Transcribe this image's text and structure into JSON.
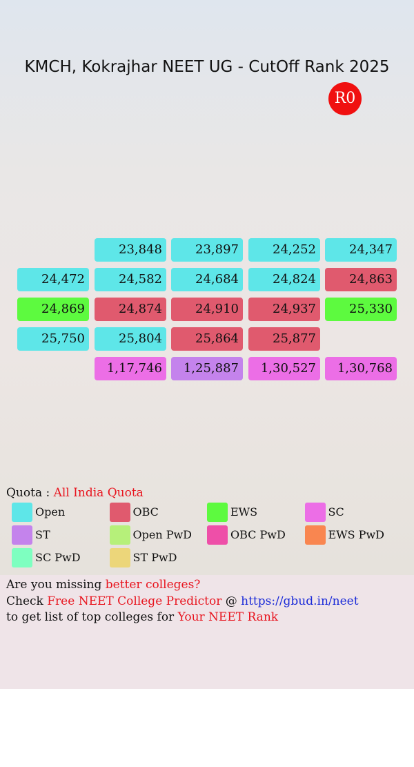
{
  "header": {
    "title": "KMCH, Kokrajhar NEET UG - CutOff Rank 2025",
    "round": "R0"
  },
  "table": {
    "rows": [
      [
        null,
        {
          "rank": "23,848",
          "color": "#5ee6e8"
        },
        {
          "rank": "23,897",
          "color": "#5ee6e8"
        },
        {
          "rank": "24,252",
          "color": "#5ee6e8"
        },
        {
          "rank": "24,347",
          "color": "#5ee6e8"
        }
      ],
      [
        {
          "rank": "24,472",
          "color": "#5ee6e8"
        },
        {
          "rank": "24,582",
          "color": "#5ee6e8"
        },
        {
          "rank": "24,684",
          "color": "#5ee6e8"
        },
        {
          "rank": "24,824",
          "color": "#5ee6e8"
        },
        {
          "rank": "24,863",
          "color": "#e05a6e"
        }
      ],
      [
        {
          "rank": "24,869",
          "color": "#5dfa3f"
        },
        {
          "rank": "24,874",
          "color": "#e05a6e"
        },
        {
          "rank": "24,910",
          "color": "#e05a6e"
        },
        {
          "rank": "24,937",
          "color": "#e05a6e"
        },
        {
          "rank": "25,330",
          "color": "#5dfa3f"
        }
      ],
      [
        {
          "rank": "25,750",
          "color": "#5ee6e8"
        },
        {
          "rank": "25,804",
          "color": "#5ee6e8"
        },
        {
          "rank": "25,864",
          "color": "#e05a6e"
        },
        {
          "rank": "25,877",
          "color": "#e05a6e"
        },
        null
      ],
      [
        null,
        {
          "rank": "1,17,746",
          "color": "#ec6ee6"
        },
        {
          "rank": "1,25,887",
          "color": "#c483ec"
        },
        {
          "rank": "1,30,527",
          "color": "#ec6ee6"
        },
        {
          "rank": "1,30,768",
          "color": "#ec6ee6"
        }
      ]
    ]
  },
  "legend": {
    "label": "Quota :",
    "quota": "All India Quota",
    "items": [
      {
        "name": "Open",
        "color": "#5ee6e8"
      },
      {
        "name": "OBC",
        "color": "#e05a6e"
      },
      {
        "name": "EWS",
        "color": "#5dfa3f"
      },
      {
        "name": "SC",
        "color": "#ec6ee6"
      },
      {
        "name": "ST",
        "color": "#c483ec"
      },
      {
        "name": "Open PwD",
        "color": "#b6f07a"
      },
      {
        "name": "OBC PwD",
        "color": "#ee4fa8"
      },
      {
        "name": "EWS PwD",
        "color": "#f98650"
      },
      {
        "name": "SC PwD",
        "color": "#7effc0"
      },
      {
        "name": "ST PwD",
        "color": "#ecd67a"
      }
    ]
  },
  "footer": {
    "line1": [
      "Are you missing",
      "better colleges?"
    ],
    "line2": [
      "Check",
      "Free NEET College Predictor",
      "@",
      "https://gbud.in/neet"
    ],
    "line3": [
      "to get list of top colleges for",
      "Your NEET Rank"
    ]
  }
}
